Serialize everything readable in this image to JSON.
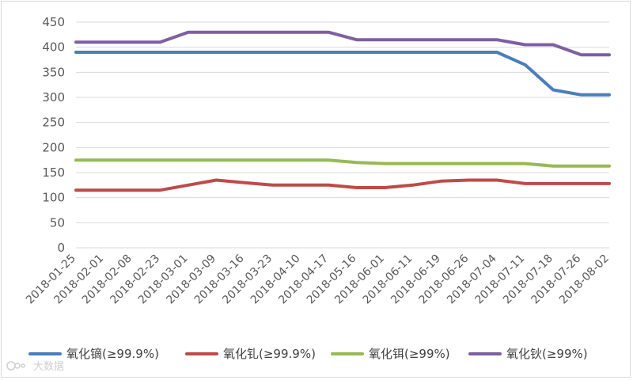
{
  "chart_data": {
    "type": "line",
    "title": "",
    "xlabel": "",
    "ylabel": "",
    "ylim": [
      0,
      450
    ],
    "ytick_step": 50,
    "grid": "horizontal",
    "legend_position": "bottom",
    "x": [
      "2018-01-25",
      "2018-02-01",
      "2018-02-08",
      "2018-02-23",
      "2018-03-01",
      "2018-03-09",
      "2018-03-16",
      "2018-03-23",
      "2018-04-10",
      "2018-04-17",
      "2018-05-16",
      "2018-06-01",
      "2018-06-11",
      "2018-06-19",
      "2018-06-26",
      "2018-07-04",
      "2018-07-11",
      "2018-07-18",
      "2018-07-26",
      "2018-08-02"
    ],
    "series": [
      {
        "name": "氧化镝(≥99.9%)",
        "color": "#4a7ebb",
        "values": [
          390,
          390,
          390,
          390,
          390,
          390,
          390,
          390,
          390,
          390,
          390,
          390,
          390,
          390,
          390,
          390,
          365,
          315,
          305,
          305
        ]
      },
      {
        "name": "氧化钆(≥99.9%)",
        "color": "#be4b48",
        "values": [
          115,
          115,
          115,
          115,
          125,
          135,
          130,
          125,
          125,
          125,
          120,
          120,
          125,
          133,
          135,
          135,
          128,
          128,
          128,
          128
        ]
      },
      {
        "name": "氧化铒(≥99%)",
        "color": "#98b954",
        "values": [
          175,
          175,
          175,
          175,
          175,
          175,
          175,
          175,
          175,
          175,
          170,
          168,
          168,
          168,
          168,
          168,
          168,
          163,
          163,
          163
        ]
      },
      {
        "name": "氧化钬(≥99%)",
        "color": "#7d60a0",
        "values": [
          410,
          410,
          410,
          410,
          430,
          430,
          430,
          430,
          430,
          430,
          415,
          415,
          415,
          415,
          415,
          415,
          405,
          405,
          385,
          385
        ]
      }
    ]
  },
  "watermark": {
    "text": "大数据"
  }
}
